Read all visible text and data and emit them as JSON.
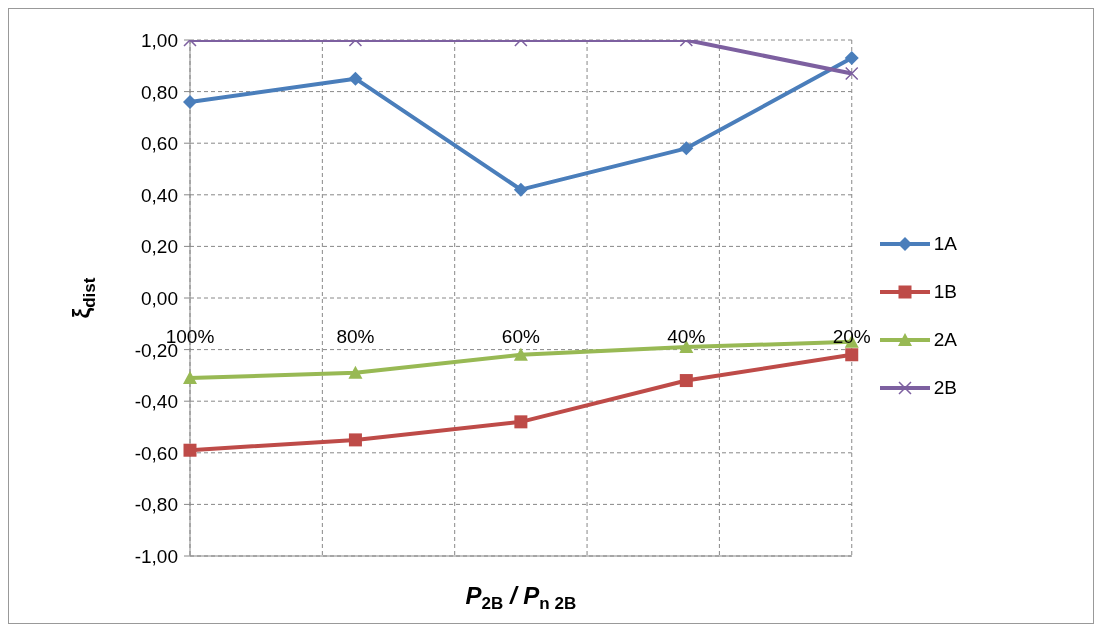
{
  "chart_data": {
    "type": "line",
    "xlabel": "P$_{2B}$ / P$_{n 2B}$",
    "ylabel": "ξ$_{dist}$",
    "categories": [
      "100%",
      "80%",
      "60%",
      "40%",
      "20%"
    ],
    "series": [
      {
        "name": "1A",
        "color": "#4a7ebb",
        "marker": "diamond",
        "values": [
          0.76,
          0.85,
          0.42,
          0.58,
          0.93
        ]
      },
      {
        "name": "1B",
        "color": "#be4b48",
        "marker": "square",
        "values": [
          -0.59,
          -0.55,
          -0.48,
          -0.32,
          -0.22
        ]
      },
      {
        "name": "2A",
        "color": "#98b954",
        "marker": "triangle",
        "values": [
          -0.31,
          -0.29,
          -0.22,
          -0.19,
          -0.17
        ]
      },
      {
        "name": "2B",
        "color": "#7d60a0",
        "marker": "cross",
        "values": [
          1.0,
          1.0,
          1.0,
          1.0,
          0.87
        ]
      }
    ],
    "ylim": [
      -1,
      1
    ],
    "yticks": [
      {
        "value": -1,
        "label": "-1,00"
      },
      {
        "value": -0.8,
        "label": "-0,80"
      },
      {
        "value": -0.6,
        "label": "-0,60"
      },
      {
        "value": -0.4,
        "label": "-0,40"
      },
      {
        "value": -0.2,
        "label": "-0,20"
      },
      {
        "value": 0,
        "label": "0,00"
      },
      {
        "value": 0.2,
        "label": "0,20"
      },
      {
        "value": 0.4,
        "label": "0,40"
      },
      {
        "value": 0.6,
        "label": "0,60"
      },
      {
        "value": 0.8,
        "label": "0,80"
      },
      {
        "value": 1,
        "label": "1,00"
      }
    ],
    "grid": true,
    "legend": "right",
    "line_style": "solid"
  }
}
